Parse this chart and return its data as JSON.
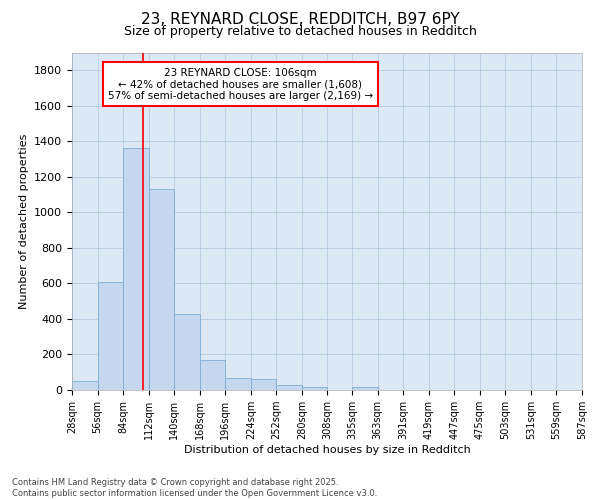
{
  "title_line1": "23, REYNARD CLOSE, REDDITCH, B97 6PY",
  "title_line2": "Size of property relative to detached houses in Redditch",
  "xlabel": "Distribution of detached houses by size in Redditch",
  "ylabel": "Number of detached properties",
  "bar_edges": [
    28,
    56,
    84,
    112,
    140,
    168,
    196,
    224,
    252,
    280,
    308,
    335,
    363,
    391,
    419,
    447,
    475,
    503,
    531,
    559,
    587
  ],
  "bar_heights": [
    50,
    608,
    1365,
    1130,
    428,
    170,
    65,
    60,
    30,
    18,
    0,
    18,
    0,
    0,
    0,
    0,
    0,
    0,
    0,
    0
  ],
  "bar_color": "#C5D8F0",
  "bar_edge_color": "#7BAED4",
  "grid_color": "#B8CCE4",
  "bg_color": "#DCE9F5",
  "vline_x": 106,
  "vline_color": "red",
  "annotation_line1": "23 REYNARD CLOSE: 106sqm",
  "annotation_line2": "← 42% of detached houses are smaller (1,608)",
  "annotation_line3": "57% of semi-detached houses are larger (2,169) →",
  "annotation_box_color": "red",
  "ylim": [
    0,
    1900
  ],
  "yticks": [
    0,
    200,
    400,
    600,
    800,
    1000,
    1200,
    1400,
    1600,
    1800
  ],
  "tick_labels": [
    "28sqm",
    "56sqm",
    "84sqm",
    "112sqm",
    "140sqm",
    "168sqm",
    "196sqm",
    "224sqm",
    "252sqm",
    "280sqm",
    "308sqm",
    "335sqm",
    "363sqm",
    "391sqm",
    "419sqm",
    "447sqm",
    "475sqm",
    "503sqm",
    "531sqm",
    "559sqm",
    "587sqm"
  ],
  "footer_text": "Contains HM Land Registry data © Crown copyright and database right 2025.\nContains public sector information licensed under the Open Government Licence v3.0.",
  "title1_fontsize": 11,
  "title2_fontsize": 9,
  "ylabel_fontsize": 8,
  "xlabel_fontsize": 8,
  "ytick_fontsize": 8,
  "xtick_fontsize": 7,
  "ann_fontsize": 7.5,
  "footer_fontsize": 6
}
